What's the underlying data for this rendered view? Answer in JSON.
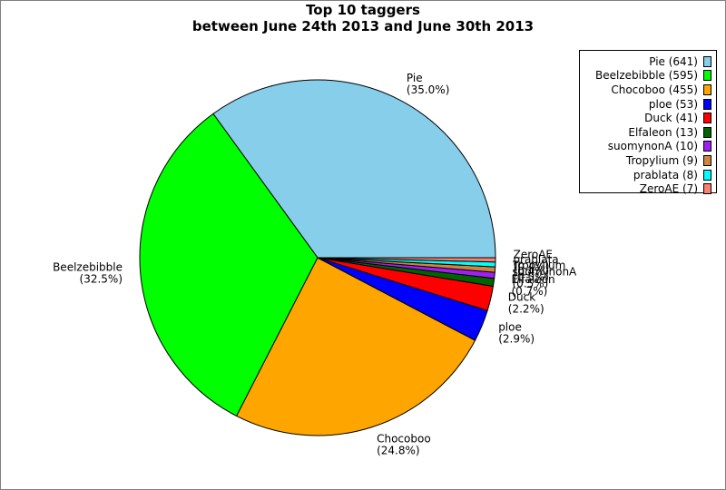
{
  "chart_data": {
    "type": "pie",
    "title": [
      "Top 10 taggers",
      "between June 24th 2013 and June 30th 2013"
    ],
    "slices": [
      {
        "label": "Pie",
        "value": 641,
        "percent": "35.0%",
        "legend": "Pie (641)",
        "color": "#87ceeb"
      },
      {
        "label": "Beelzebibble",
        "value": 595,
        "percent": "32.5%",
        "legend": "Beelzebibble (595)",
        "color": "#00ff00"
      },
      {
        "label": "Chocoboo",
        "value": 455,
        "percent": "24.8%",
        "legend": "Chocoboo (455)",
        "color": "#ffa500"
      },
      {
        "label": "ploe",
        "value": 53,
        "percent": "2.9%",
        "legend": "ploe (53)",
        "color": "#0000ff"
      },
      {
        "label": "Duck",
        "value": 41,
        "percent": "2.2%",
        "legend": "Duck (41)",
        "color": "#ff0000"
      },
      {
        "label": "Elfaleon",
        "value": 13,
        "percent": "0.7%",
        "legend": "Elfaleon (13)",
        "color": "#006400"
      },
      {
        "label": "suomynonA",
        "value": 10,
        "percent": "0.5%",
        "legend": "suomynonA (10)",
        "color": "#a020f0"
      },
      {
        "label": "Tropylium",
        "value": 9,
        "percent": "0.5%",
        "legend": "Tropylium (9)",
        "color": "#cd853f"
      },
      {
        "label": "prablata",
        "value": 8,
        "percent": "0.4%",
        "legend": "prablata (8)",
        "color": "#00ffff"
      },
      {
        "label": "ZeroAE",
        "value": 7,
        "percent": "0.4%",
        "legend": "ZeroAE (7)",
        "color": "#fa8072"
      }
    ],
    "legend_position": "top-right"
  }
}
